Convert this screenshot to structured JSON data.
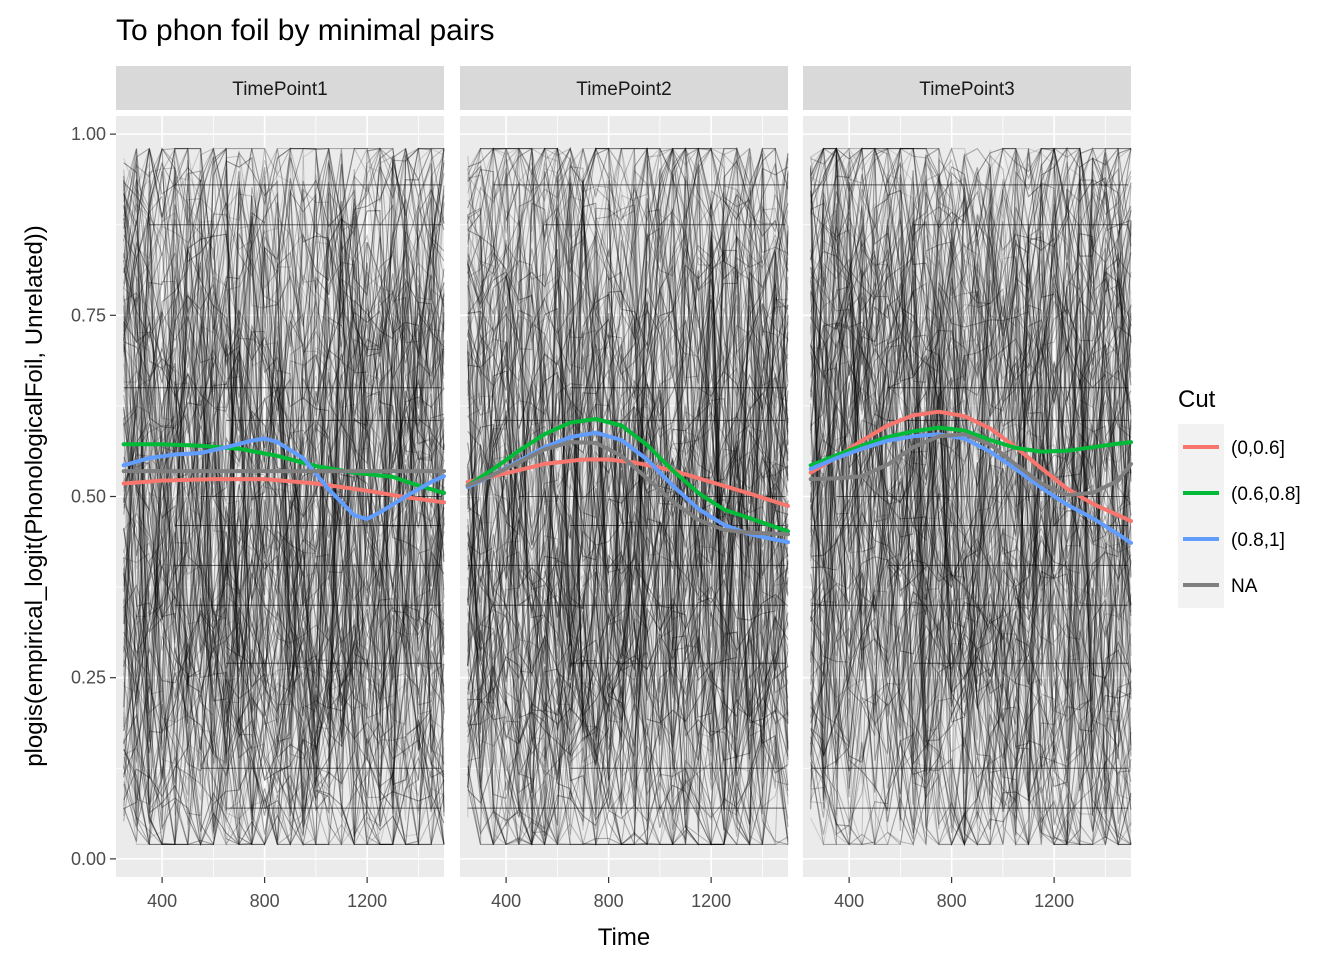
{
  "chart_data": {
    "type": "line",
    "title": "To phon foil by minimal pairs",
    "xlabel": "Time",
    "ylabel": "plogis(empirical_logit(PhonologicalFoil, Unrelated))",
    "xlim": [
      220,
      1500
    ],
    "ylim": [
      -0.025,
      1.025
    ],
    "xticks": [
      400,
      800,
      1200
    ],
    "yticks": [
      0.0,
      0.25,
      0.5,
      0.75,
      1.0
    ],
    "ytick_labels": [
      "0.00",
      "0.25",
      "0.50",
      "0.75",
      "1.00"
    ],
    "grid": true,
    "legend": {
      "title": "Cut",
      "position": "right",
      "entries": [
        {
          "label": "(0,0.6]",
          "color": "#F8766D"
        },
        {
          "label": "(0.6,0.8]",
          "color": "#00BA38"
        },
        {
          "label": "(0.8,1]",
          "color": "#619CFF"
        },
        {
          "label": "NA",
          "color": "#7F7F7F"
        }
      ]
    },
    "panels": [
      {
        "label": "TimePoint1",
        "smooth_series": [
          {
            "name": "(0,0.6]",
            "color": "#F8766D",
            "x": [
              250,
              400,
              600,
              800,
              1000,
              1200,
              1350,
              1500
            ],
            "y": [
              0.518,
              0.522,
              0.524,
              0.524,
              0.518,
              0.508,
              0.499,
              0.492
            ]
          },
          {
            "name": "(0.6,0.8]",
            "color": "#00BA38",
            "x": [
              250,
              400,
              550,
              700,
              850,
              1000,
              1150,
              1300,
              1400,
              1500
            ],
            "y": [
              0.572,
              0.572,
              0.57,
              0.566,
              0.556,
              0.542,
              0.533,
              0.527,
              0.515,
              0.505
            ]
          },
          {
            "name": "(0.8,1]",
            "color": "#619CFF",
            "x": [
              250,
              350,
              450,
              550,
              650,
              750,
              800,
              850,
              950,
              1050,
              1150,
              1200,
              1250,
              1350,
              1450,
              1500
            ],
            "y": [
              0.543,
              0.553,
              0.558,
              0.56,
              0.568,
              0.577,
              0.58,
              0.575,
              0.553,
              0.51,
              0.474,
              0.469,
              0.478,
              0.5,
              0.52,
              0.528
            ]
          },
          {
            "name": "NA",
            "color": "#7F7F7F",
            "x": [
              250,
              500,
              800,
              1100,
              1500
            ],
            "y": [
              0.535,
              0.535,
              0.535,
              0.535,
              0.535
            ]
          }
        ]
      },
      {
        "label": "TimePoint2",
        "smooth_series": [
          {
            "name": "(0,0.6]",
            "color": "#F8766D",
            "x": [
              250,
              400,
              550,
              700,
              800,
              900,
              1050,
              1200,
              1350,
              1500
            ],
            "y": [
              0.52,
              0.532,
              0.545,
              0.551,
              0.551,
              0.547,
              0.536,
              0.52,
              0.504,
              0.487
            ]
          },
          {
            "name": "(0.6,0.8]",
            "color": "#00BA38",
            "x": [
              250,
              350,
              450,
              550,
              650,
              750,
              850,
              950,
              1050,
              1150,
              1250,
              1350,
              1500
            ],
            "y": [
              0.515,
              0.538,
              0.563,
              0.586,
              0.602,
              0.607,
              0.598,
              0.571,
              0.536,
              0.505,
              0.482,
              0.47,
              0.452
            ]
          },
          {
            "name": "(0.8,1]",
            "color": "#619CFF",
            "x": [
              250,
              350,
              450,
              550,
              650,
              750,
              850,
              950,
              1050,
              1150,
              1250,
              1350,
              1500
            ],
            "y": [
              0.513,
              0.53,
              0.549,
              0.568,
              0.582,
              0.588,
              0.578,
              0.551,
              0.515,
              0.483,
              0.461,
              0.448,
              0.437
            ]
          },
          {
            "name": "NA",
            "color": "#7F7F7F",
            "x": [
              250,
              350,
              450,
              550,
              650,
              750,
              850,
              950,
              1050,
              1150,
              1250,
              1350,
              1500
            ],
            "y": [
              0.515,
              0.53,
              0.547,
              0.565,
              0.575,
              0.574,
              0.556,
              0.525,
              0.493,
              0.468,
              0.454,
              0.45,
              0.448
            ]
          }
        ]
      },
      {
        "label": "TimePoint3",
        "smooth_series": [
          {
            "name": "(0,0.6]",
            "color": "#F8766D",
            "x": [
              250,
              350,
              450,
              550,
              650,
              750,
              850,
              950,
              1050,
              1150,
              1250,
              1350,
              1500
            ],
            "y": [
              0.533,
              0.554,
              0.577,
              0.598,
              0.612,
              0.617,
              0.611,
              0.594,
              0.568,
              0.539,
              0.511,
              0.49,
              0.466
            ]
          },
          {
            "name": "(0.6,0.8]",
            "color": "#00BA38",
            "x": [
              250,
              350,
              450,
              550,
              650,
              750,
              850,
              950,
              1050,
              1150,
              1250,
              1350,
              1450,
              1500
            ],
            "y": [
              0.543,
              0.557,
              0.57,
              0.582,
              0.59,
              0.595,
              0.591,
              0.578,
              0.567,
              0.562,
              0.563,
              0.568,
              0.573,
              0.575
            ]
          },
          {
            "name": "(0.8,1]",
            "color": "#619CFF",
            "x": [
              250,
              350,
              450,
              550,
              650,
              750,
              850,
              950,
              1050,
              1150,
              1250,
              1350,
              1450,
              1500
            ],
            "y": [
              0.538,
              0.553,
              0.566,
              0.577,
              0.583,
              0.586,
              0.58,
              0.562,
              0.538,
              0.512,
              0.489,
              0.47,
              0.448,
              0.436
            ]
          },
          {
            "name": "NA",
            "color": "#7F7F7F",
            "x": [
              250,
              350,
              450,
              550,
              650,
              750,
              850,
              950,
              1050,
              1150,
              1250,
              1350,
              1450,
              1500
            ],
            "y": [
              0.524,
              0.525,
              0.528,
              0.544,
              0.568,
              0.583,
              0.586,
              0.572,
              0.544,
              0.518,
              0.502,
              0.505,
              0.522,
              0.545
            ]
          }
        ]
      }
    ]
  }
}
